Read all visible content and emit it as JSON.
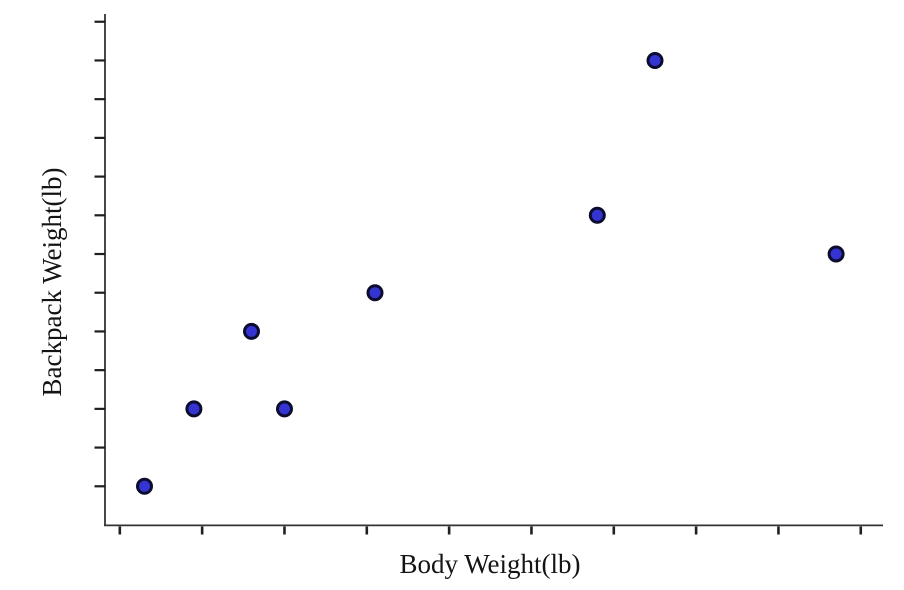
{
  "figure": {
    "background": "#ffffff"
  },
  "chart_data": {
    "type": "scatter",
    "title": "",
    "xlabel": "Body Weight(lb)",
    "ylabel": "Backpack Weight(lb)",
    "points": [
      {
        "x": 103,
        "y": 24
      },
      {
        "x": 109,
        "y": 26
      },
      {
        "x": 116,
        "y": 28
      },
      {
        "x": 120,
        "y": 26
      },
      {
        "x": 131,
        "y": 29
      },
      {
        "x": 158,
        "y": 31
      },
      {
        "x": 165,
        "y": 35
      },
      {
        "x": 187,
        "y": 30
      }
    ],
    "x_ticks": [
      100,
      110,
      120,
      130,
      140,
      150,
      160,
      170,
      180,
      190
    ],
    "y_ticks": [
      24,
      25,
      26,
      27,
      28,
      29,
      30,
      31,
      32,
      33,
      34,
      35,
      36
    ],
    "tick_number_labels_visible": false,
    "xlim": [
      98.2,
      192.7
    ],
    "ylim": [
      23,
      36.2
    ],
    "grid": false,
    "legend": null,
    "marker": {
      "shape": "circle",
      "fill_color": "#3434d2",
      "stroke_color": "#0c0c2e",
      "radius_px": 7,
      "stroke_width_px": 3
    },
    "axis_color": "#333333",
    "tick_color": "#1f1f1f"
  }
}
